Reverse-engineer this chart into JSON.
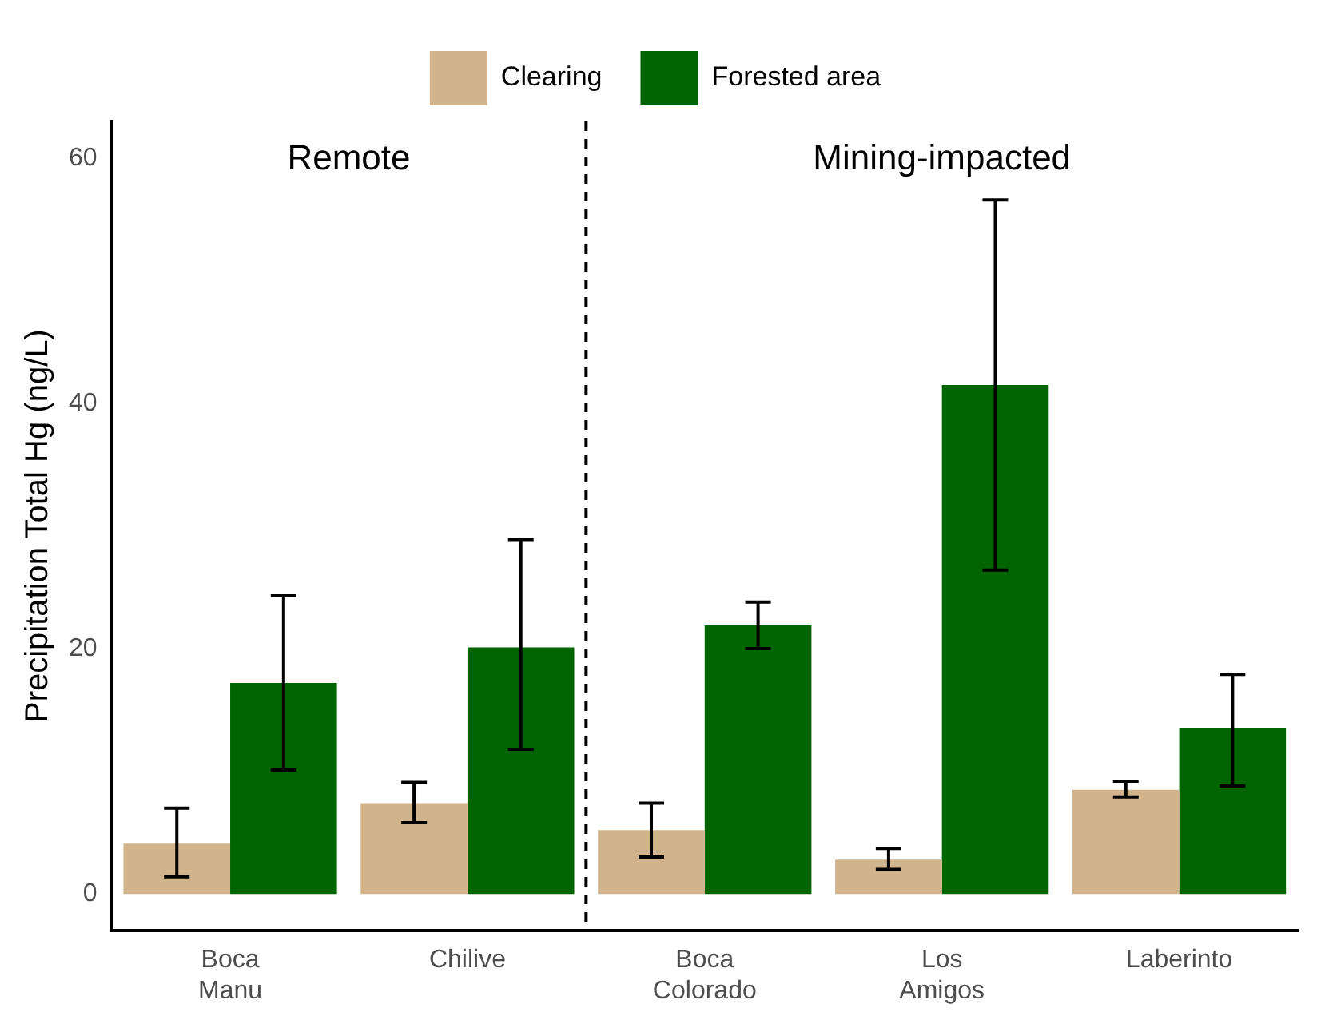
{
  "chart_data": {
    "type": "bar",
    "ylabel": "Precipitation Total Hg (ng/L)",
    "categories": [
      "Boca\nManu",
      "Chilive",
      "Boca\nColorado",
      "Los\nAmigos",
      "Laberinto"
    ],
    "series": [
      {
        "name": "Clearing",
        "color": "#d2b48c",
        "values": [
          4.1,
          7.4,
          5.2,
          2.8,
          8.5
        ],
        "errors": [
          [
            1.4,
            7.0
          ],
          [
            5.8,
            9.1
          ],
          [
            3.0,
            7.4
          ],
          [
            2.0,
            3.7
          ],
          [
            7.9,
            9.2
          ]
        ]
      },
      {
        "name": "Forested area",
        "color": "#006400",
        "values": [
          17.2,
          20.1,
          21.9,
          41.5,
          13.5
        ],
        "errors": [
          [
            10.1,
            24.3
          ],
          [
            11.8,
            28.9
          ],
          [
            20.0,
            23.8
          ],
          [
            26.4,
            56.6
          ],
          [
            8.8,
            17.9
          ]
        ]
      }
    ],
    "ylim": [
      -3,
      63
    ],
    "yticks": [
      0,
      20,
      40,
      60
    ],
    "grid": false,
    "legend": "top",
    "annotations": [
      "Remote",
      "Mining-impacted"
    ]
  }
}
